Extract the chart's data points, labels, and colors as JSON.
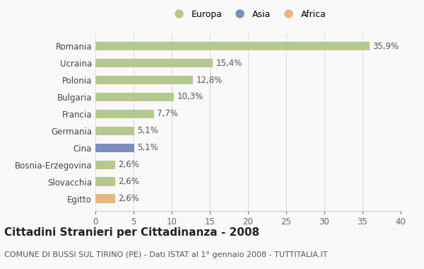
{
  "categories": [
    "Romania",
    "Ucraina",
    "Polonia",
    "Bulgaria",
    "Francia",
    "Germania",
    "Cina",
    "Bosnia-Erzegovina",
    "Slovacchia",
    "Egitto"
  ],
  "values": [
    35.9,
    15.4,
    12.8,
    10.3,
    7.7,
    5.1,
    5.1,
    2.6,
    2.6,
    2.6
  ],
  "labels": [
    "35,9%",
    "15,4%",
    "12,8%",
    "10,3%",
    "7,7%",
    "5,1%",
    "5,1%",
    "2,6%",
    "2,6%",
    "2,6%"
  ],
  "colors": [
    "#b5c98e",
    "#b5c98e",
    "#b5c98e",
    "#b5c98e",
    "#b5c98e",
    "#b5c98e",
    "#7b8fbf",
    "#b5c98e",
    "#b5c98e",
    "#e8b87a"
  ],
  "legend_labels": [
    "Europa",
    "Asia",
    "Africa"
  ],
  "legend_colors": [
    "#b5c98e",
    "#7b8fbf",
    "#e8b87a"
  ],
  "title": "Cittadini Stranieri per Cittadinanza - 2008",
  "subtitle": "COMUNE DI BUSSI SUL TIRINO (PE) - Dati ISTAT al 1° gennaio 2008 - TUTTITALIA.IT",
  "xlim": [
    0,
    40
  ],
  "xticks": [
    0,
    5,
    10,
    15,
    20,
    25,
    30,
    35,
    40
  ],
  "background_color": "#f9f9f9",
  "grid_color": "#dddddd",
  "bar_height": 0.52,
  "title_fontsize": 11,
  "subtitle_fontsize": 8,
  "tick_fontsize": 8.5,
  "label_fontsize": 8.5,
  "ytick_fontsize": 8.5
}
